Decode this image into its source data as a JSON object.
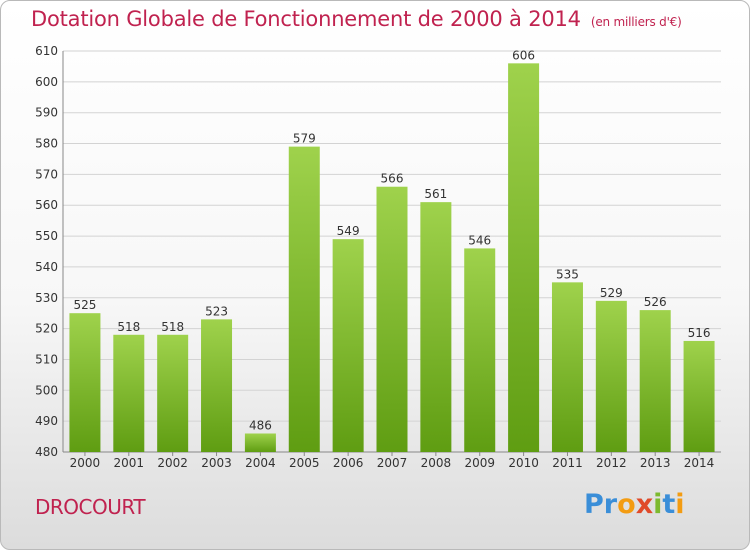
{
  "title": "Dotation Globale de Fonctionnement de 2000 à 2014",
  "unit": "(en milliers d'€)",
  "commune": "DROCOURT",
  "logo_letters": [
    "P",
    "r",
    "o",
    "x",
    "i",
    "t",
    "i"
  ],
  "logo_colors": [
    "#3a8ed8",
    "#3a8ed8",
    "#f39c12",
    "#e04a2a",
    "#7dba2f",
    "#3a8ed8",
    "#f39c12"
  ],
  "colors": {
    "title": "#c0224f",
    "bar_top": "#9fd24c",
    "bar_bottom": "#5f9d12",
    "grid": "#d3d3d3"
  },
  "chart_data": {
    "type": "bar",
    "categories": [
      "2000",
      "2001",
      "2002",
      "2003",
      "2004",
      "2005",
      "2006",
      "2007",
      "2008",
      "2009",
      "2010",
      "2011",
      "2012",
      "2013",
      "2014"
    ],
    "values": [
      525,
      518,
      518,
      523,
      486,
      579,
      549,
      566,
      561,
      546,
      606,
      535,
      529,
      526,
      516
    ],
    "ylim": [
      480,
      610
    ],
    "yticks": [
      480,
      490,
      500,
      510,
      520,
      530,
      540,
      550,
      560,
      570,
      580,
      590,
      600,
      610
    ],
    "grid": true,
    "data_labels": true
  }
}
